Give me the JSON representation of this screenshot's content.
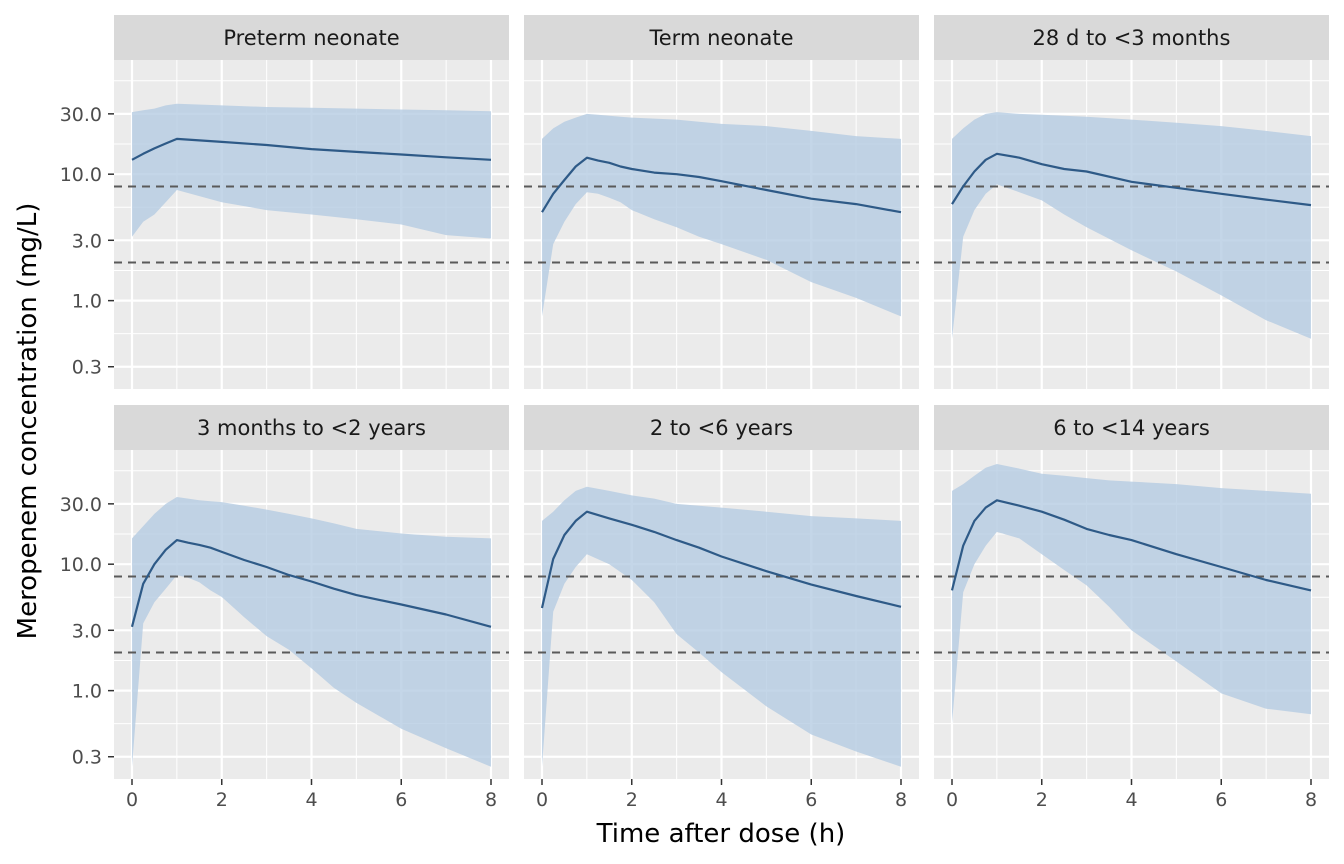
{
  "chart_data": {
    "type": "line",
    "xlabel": "Time after dose (h)",
    "ylabel": "Meropenem concentration (mg/L)",
    "x_scale": "linear",
    "y_scale": "log10",
    "xlim": [
      0,
      8
    ],
    "ylim": [
      0.2,
      80
    ],
    "x_ticks": [
      0,
      2,
      4,
      6,
      8
    ],
    "x_tick_labels": [
      "0",
      "2",
      "4",
      "6",
      "8"
    ],
    "y_ticks": [
      0.3,
      1,
      3,
      10,
      30
    ],
    "y_tick_labels": [
      "0.3",
      "1.0",
      "3.0",
      "10.0",
      "30.0"
    ],
    "reference_lines": [
      8,
      2
    ],
    "grid": true,
    "colors": {
      "line": "#2e5a87",
      "ribbon": "#b4cbe2",
      "panel_bg": "#ebebeb",
      "grid": "#ffffff",
      "strip_bg": "#d9d9d9",
      "ref_line": "#5a5a5a"
    },
    "panels": [
      {
        "label": "Preterm neonate",
        "x": [
          0,
          0.25,
          0.5,
          0.75,
          1,
          2,
          3,
          4,
          5,
          6,
          7,
          8
        ],
        "median": [
          13,
          14.5,
          16,
          17.5,
          19,
          18,
          17,
          15.8,
          15,
          14.3,
          13.6,
          13
        ],
        "lower": [
          3.2,
          4.2,
          4.8,
          6,
          7.5,
          6,
          5.2,
          4.8,
          4.4,
          4,
          3.3,
          3.1
        ],
        "upper": [
          31,
          32,
          33,
          35,
          36,
          35,
          34,
          33.5,
          33,
          32.5,
          32,
          31.5
        ]
      },
      {
        "label": "Term neonate",
        "x": [
          0,
          0.25,
          0.5,
          0.75,
          1,
          1.25,
          1.5,
          1.75,
          2,
          2.5,
          3,
          3.5,
          4,
          5,
          6,
          7,
          8
        ],
        "median": [
          5,
          7,
          9,
          11.5,
          13.5,
          12.8,
          12.3,
          11.5,
          11,
          10.3,
          10,
          9.5,
          8.8,
          7.5,
          6.4,
          5.8,
          5
        ],
        "lower": [
          0.75,
          2.8,
          4.2,
          5.8,
          7.2,
          7,
          6.5,
          6,
          5.2,
          4.4,
          3.8,
          3.2,
          2.8,
          2.1,
          1.4,
          1.05,
          0.75
        ],
        "upper": [
          19,
          23,
          26,
          28,
          30,
          29.5,
          29,
          28.5,
          28,
          27.5,
          27,
          26,
          25,
          24,
          22,
          20,
          19
        ]
      },
      {
        "label": "28 d to <3 months",
        "x": [
          0,
          0.25,
          0.5,
          0.75,
          1,
          1.5,
          2,
          2.5,
          3,
          4,
          5,
          6,
          7,
          8
        ],
        "median": [
          5.8,
          8,
          10.5,
          13,
          14.5,
          13.5,
          12,
          11,
          10.5,
          8.7,
          7.8,
          7,
          6.3,
          5.7
        ],
        "lower": [
          0.5,
          3.2,
          5.2,
          7,
          8.3,
          7.2,
          6.2,
          4.8,
          3.8,
          2.5,
          1.7,
          1.1,
          0.7,
          0.5
        ],
        "upper": [
          19,
          23,
          27,
          30,
          31,
          30,
          29.5,
          29,
          28.5,
          27,
          25.5,
          24,
          22,
          20
        ]
      },
      {
        "label": "3 months to <2 years",
        "x": [
          0,
          0.25,
          0.5,
          0.75,
          1,
          1.25,
          1.5,
          1.75,
          2,
          2.5,
          3,
          3.5,
          4,
          4.5,
          5,
          6,
          7,
          8
        ],
        "median": [
          3.2,
          7,
          10,
          13,
          15.5,
          14.8,
          14.2,
          13.5,
          12.5,
          10.8,
          9.5,
          8.2,
          7.3,
          6.4,
          5.7,
          4.8,
          4,
          3.2
        ],
        "lower": [
          0.25,
          3.4,
          5,
          6.4,
          8.2,
          7.8,
          7.2,
          6.2,
          5.5,
          3.8,
          2.7,
          2.1,
          1.5,
          1.05,
          0.8,
          0.5,
          0.35,
          0.25
        ],
        "upper": [
          16,
          20,
          25,
          30,
          34,
          33,
          32,
          31.5,
          31,
          29,
          27,
          25,
          23,
          21,
          19,
          17.5,
          16.5,
          16
        ]
      },
      {
        "label": "2 to <6 years",
        "x": [
          0,
          0.25,
          0.5,
          0.75,
          1,
          1.5,
          2,
          2.5,
          3,
          3.5,
          4,
          5,
          6,
          7,
          8
        ],
        "median": [
          4.5,
          11,
          17,
          22,
          26,
          23,
          20.5,
          18,
          15.5,
          13.5,
          11.5,
          8.8,
          6.9,
          5.6,
          4.6
        ],
        "lower": [
          0.25,
          4.2,
          7,
          9.5,
          12,
          10,
          7.5,
          5,
          2.8,
          2,
          1.4,
          0.75,
          0.45,
          0.33,
          0.25
        ],
        "upper": [
          22,
          26,
          32,
          38,
          41,
          38,
          35,
          33,
          30,
          29,
          28,
          26,
          24,
          23,
          22
        ]
      },
      {
        "label": "6 to <14 years",
        "x": [
          0,
          0.25,
          0.5,
          0.75,
          1,
          1.5,
          2,
          2.5,
          3,
          3.5,
          4,
          5,
          6,
          7,
          8
        ],
        "median": [
          6.2,
          14,
          22,
          28,
          32,
          29,
          26,
          22.5,
          19,
          17,
          15.5,
          12,
          9.5,
          7.5,
          6.2
        ],
        "lower": [
          0.55,
          6,
          10,
          14,
          18,
          16,
          12,
          9,
          6.8,
          4.6,
          3,
          1.7,
          0.95,
          0.72,
          0.65
        ],
        "upper": [
          38,
          43,
          50,
          58,
          62,
          57,
          52,
          50,
          48,
          46,
          45,
          43,
          40,
          38,
          36
        ]
      }
    ]
  }
}
